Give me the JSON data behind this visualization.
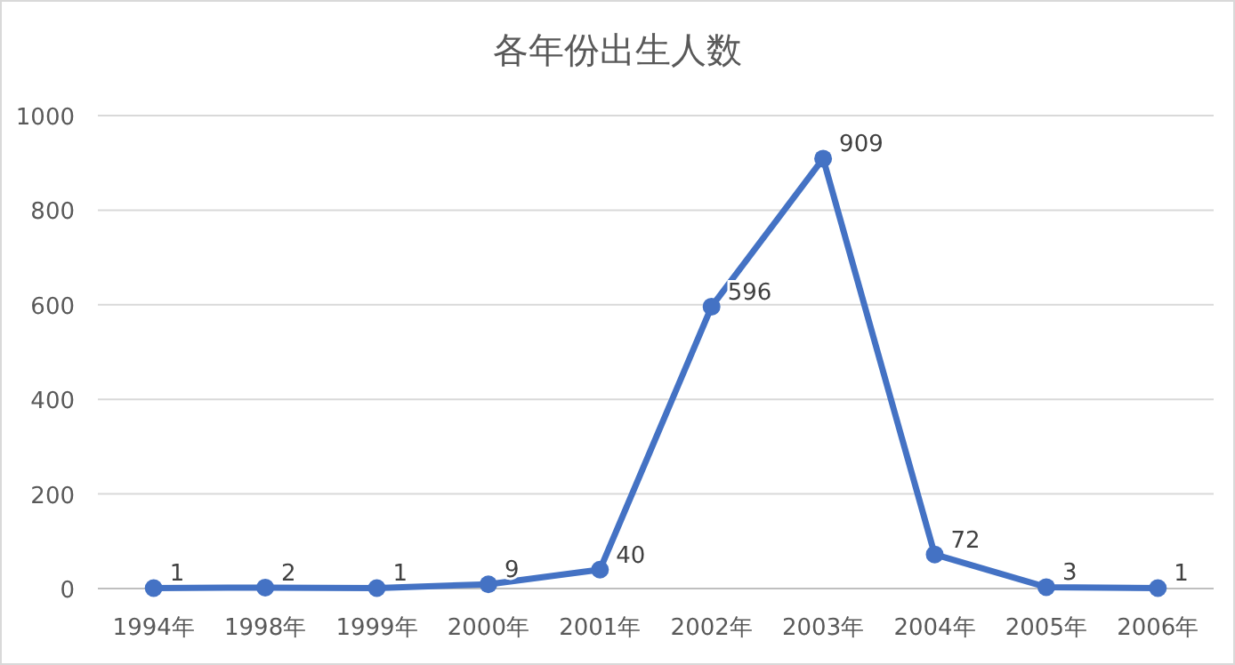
{
  "chart_data": {
    "type": "line",
    "title": "各年份出生人数",
    "categories": [
      "1994年",
      "1998年",
      "1999年",
      "2000年",
      "2001年",
      "2002年",
      "2003年",
      "2004年",
      "2005年",
      "2006年"
    ],
    "series": [
      {
        "color": "#4472c4",
        "values": [
          1,
          2,
          1,
          9,
          40,
          596,
          909,
          72,
          3,
          1
        ]
      }
    ],
    "ylim": [
      0,
      1000
    ],
    "yticks": [
      0,
      200,
      400,
      600,
      800,
      1000
    ],
    "grid": "y",
    "marker": "circle",
    "line_style": "solid",
    "data_labels": true
  }
}
